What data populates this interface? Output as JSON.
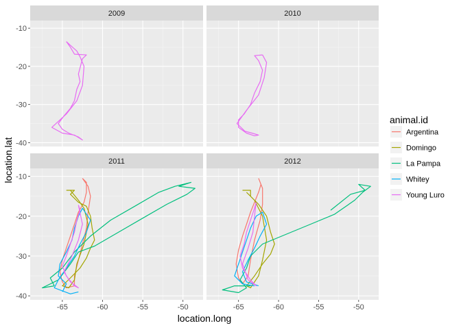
{
  "chart_data": {
    "type": "line",
    "xlabel": "location.long",
    "ylabel": "location.lat",
    "xlim": [
      -69,
      -47.5
    ],
    "ylim": [
      -41,
      -8
    ],
    "x_ticks": [
      -65,
      -60,
      -55,
      -50
    ],
    "y_ticks": [
      -10,
      -20,
      -30,
      -40
    ],
    "x_tick_labels": [
      "-65",
      "-60",
      "-55",
      "-50"
    ],
    "y_tick_labels": [
      "-10",
      "-20",
      "-30",
      "-40"
    ],
    "grid": true,
    "legend": {
      "title": "animal.id",
      "position": "right",
      "entries": [
        "Argentina",
        "Domingo",
        "La Pampa",
        "Whitey",
        "Young Luro"
      ]
    },
    "colors": {
      "Argentina": "#F8766D",
      "Domingo": "#A3A500",
      "La Pampa": "#00BF7D",
      "Whitey": "#00B0F6",
      "Young Luro": "#E76BF3"
    },
    "facets": [
      {
        "label": "2009",
        "series": [
          {
            "name": "Young Luro",
            "points": [
              [
                -64.5,
                -13.5
              ],
              [
                -64,
                -15
              ],
              [
                -63.5,
                -16.8
              ],
              [
                -62,
                -17
              ],
              [
                -62.5,
                -18
              ],
              [
                -63,
                -22
              ],
              [
                -62.8,
                -24
              ],
              [
                -63.2,
                -26
              ],
              [
                -63.5,
                -29
              ],
              [
                -64,
                -31
              ],
              [
                -64.8,
                -33
              ],
              [
                -65.5,
                -35
              ],
              [
                -65,
                -36.5
              ],
              [
                -64.2,
                -37.5
              ],
              [
                -63,
                -38.5
              ],
              [
                -62.5,
                -39.3
              ],
              [
                -63.5,
                -38
              ],
              [
                -65,
                -37.5
              ],
              [
                -66.3,
                -36
              ],
              [
                -64.5,
                -32.5
              ],
              [
                -63.2,
                -29
              ],
              [
                -62.5,
                -25
              ],
              [
                -62.3,
                -20
              ],
              [
                -62.8,
                -17.5
              ],
              [
                -63.2,
                -16
              ],
              [
                -64,
                -14.5
              ],
              [
                -64.5,
                -13.5
              ]
            ]
          }
        ]
      },
      {
        "label": "2010",
        "series": [
          {
            "name": "Young Luro",
            "points": [
              [
                -62,
                -17
              ],
              [
                -63,
                -17.2
              ],
              [
                -62.5,
                -18.5
              ],
              [
                -62,
                -21
              ],
              [
                -62.3,
                -24
              ],
              [
                -63,
                -27
              ],
              [
                -63.5,
                -30
              ],
              [
                -64.3,
                -32.5
              ],
              [
                -65,
                -34
              ],
              [
                -65,
                -36
              ],
              [
                -64,
                -37.5
              ],
              [
                -63,
                -38.2
              ],
              [
                -62.5,
                -38
              ],
              [
                -63.3,
                -37.5
              ],
              [
                -64.2,
                -37
              ],
              [
                -65.2,
                -35
              ],
              [
                -64,
                -31.5
              ],
              [
                -62.5,
                -27.5
              ],
              [
                -61.8,
                -23
              ],
              [
                -61.5,
                -19
              ],
              [
                -62,
                -17
              ]
            ]
          }
        ]
      },
      {
        "label": "2011",
        "series": [
          {
            "name": "Argentina",
            "points": [
              [
                -62.5,
                -10.5
              ],
              [
                -62,
                -11.5
              ],
              [
                -62,
                -14
              ],
              [
                -62.3,
                -16.5
              ],
              [
                -63,
                -19
              ],
              [
                -63.5,
                -22
              ],
              [
                -64,
                -25
              ],
              [
                -64.5,
                -28
              ],
              [
                -65,
                -31
              ],
              [
                -65.3,
                -34
              ],
              [
                -65,
                -36.5
              ],
              [
                -64.5,
                -38
              ],
              [
                -63.5,
                -37.5
              ],
              [
                -63.5,
                -35
              ],
              [
                -63,
                -31
              ],
              [
                -62.5,
                -27
              ],
              [
                -62,
                -23
              ],
              [
                -61.8,
                -19
              ],
              [
                -61.5,
                -15
              ],
              [
                -61.8,
                -12.5
              ],
              [
                -62.5,
                -10.5
              ]
            ]
          },
          {
            "name": "Domingo",
            "points": [
              [
                -64.5,
                -13.5
              ],
              [
                -63.5,
                -13.5
              ],
              [
                -64,
                -14.5
              ],
              [
                -63,
                -16.5
              ],
              [
                -62,
                -17.5
              ],
              [
                -61.5,
                -20
              ],
              [
                -61.3,
                -23
              ],
              [
                -61,
                -26
              ],
              [
                -61.5,
                -28
              ],
              [
                -62,
                -30.5
              ],
              [
                -62.8,
                -33
              ],
              [
                -64,
                -35.5
              ],
              [
                -65,
                -37.5
              ],
              [
                -64.2,
                -38
              ],
              [
                -63.5,
                -36
              ],
              [
                -63.2,
                -32
              ],
              [
                -62.3,
                -27
              ],
              [
                -61.8,
                -22
              ],
              [
                -62.3,
                -18
              ],
              [
                -63,
                -16
              ],
              [
                -64,
                -13.5
              ]
            ]
          },
          {
            "name": "La Pampa",
            "points": [
              [
                -66,
                -37.5
              ],
              [
                -67.5,
                -38
              ],
              [
                -65.5,
                -36
              ],
              [
                -64,
                -32
              ],
              [
                -63,
                -29
              ],
              [
                -61,
                -27.5
              ],
              [
                -58,
                -24
              ],
              [
                -55,
                -20.5
              ],
              [
                -52,
                -17
              ],
              [
                -49.5,
                -14.5
              ],
              [
                -48.5,
                -13
              ],
              [
                -50.5,
                -12.5
              ],
              [
                -49,
                -11.5
              ],
              [
                -51,
                -12.5
              ],
              [
                -53,
                -14
              ],
              [
                -56,
                -17.5
              ],
              [
                -59,
                -21
              ],
              [
                -61.5,
                -25
              ],
              [
                -63.5,
                -29
              ],
              [
                -65,
                -33
              ],
              [
                -66.5,
                -35.5
              ],
              [
                -66,
                -37.5
              ]
            ]
          },
          {
            "name": "Whitey",
            "points": [
              [
                -65,
                -39
              ],
              [
                -64.5,
                -37
              ],
              [
                -65.5,
                -35
              ],
              [
                -65.3,
                -32
              ],
              [
                -64.5,
                -29
              ],
              [
                -63.8,
                -26
              ],
              [
                -63.5,
                -23
              ],
              [
                -63,
                -20
              ],
              [
                -62.5,
                -18
              ],
              [
                -61.5,
                -21
              ],
              [
                -62,
                -24
              ],
              [
                -62.8,
                -27
              ],
              [
                -63.5,
                -30
              ],
              [
                -64.5,
                -33
              ],
              [
                -65.5,
                -36
              ],
              [
                -66,
                -38
              ],
              [
                -64,
                -39.5
              ],
              [
                -63,
                -39
              ]
            ]
          },
          {
            "name": "Young Luro",
            "points": [
              [
                -63,
                -17.2
              ],
              [
                -62.8,
                -18.5
              ],
              [
                -63.2,
                -21
              ],
              [
                -63.5,
                -24
              ],
              [
                -64,
                -27
              ],
              [
                -64.5,
                -30
              ],
              [
                -65,
                -32.5
              ],
              [
                -64.5,
                -35
              ],
              [
                -63.5,
                -37.5
              ],
              [
                -63,
                -38
              ],
              [
                -64,
                -36.5
              ],
              [
                -64.8,
                -34
              ],
              [
                -63.8,
                -30
              ],
              [
                -63,
                -26
              ],
              [
                -62.5,
                -22
              ],
              [
                -63,
                -17.2
              ]
            ]
          }
        ]
      },
      {
        "label": "2012",
        "series": [
          {
            "name": "Argentina",
            "points": [
              [
                -62.5,
                -10.5
              ],
              [
                -62.2,
                -12
              ],
              [
                -62.5,
                -14
              ],
              [
                -63,
                -16.5
              ],
              [
                -63.5,
                -19
              ],
              [
                -64,
                -22
              ],
              [
                -64.5,
                -25
              ],
              [
                -65,
                -28.5
              ],
              [
                -65.3,
                -32
              ],
              [
                -65,
                -35.5
              ],
              [
                -64.5,
                -37
              ],
              [
                -63.8,
                -35
              ],
              [
                -63.5,
                -31
              ],
              [
                -63,
                -26
              ],
              [
                -62.3,
                -21
              ],
              [
                -62,
                -17
              ],
              [
                -62,
                -13
              ],
              [
                -62.5,
                -10.5
              ]
            ]
          },
          {
            "name": "Domingo",
            "points": [
              [
                -64.5,
                -13.5
              ],
              [
                -63.5,
                -13.5
              ],
              [
                -63.5,
                -15
              ],
              [
                -62.5,
                -17
              ],
              [
                -61.5,
                -20
              ],
              [
                -61,
                -24
              ],
              [
                -60.5,
                -27
              ],
              [
                -61,
                -29.5
              ],
              [
                -62,
                -32
              ],
              [
                -63,
                -35
              ],
              [
                -64,
                -37.5
              ],
              [
                -63.5,
                -38
              ],
              [
                -62.5,
                -35
              ],
              [
                -62,
                -31
              ],
              [
                -61.5,
                -26
              ],
              [
                -62,
                -20
              ],
              [
                -63,
                -16
              ],
              [
                -64,
                -14
              ]
            ]
          },
          {
            "name": "La Pampa",
            "points": [
              [
                -63.5,
                -37.5
              ],
              [
                -65.5,
                -37.5
              ],
              [
                -67,
                -38.5
              ],
              [
                -65,
                -39.2
              ],
              [
                -64,
                -38
              ],
              [
                -64.8,
                -36
              ],
              [
                -64,
                -33
              ],
              [
                -63.5,
                -30
              ],
              [
                -62,
                -27
              ],
              [
                -59,
                -24.5
              ],
              [
                -56,
                -22
              ],
              [
                -53,
                -19.5
              ],
              [
                -50.5,
                -16
              ],
              [
                -49.5,
                -14
              ],
              [
                -48.5,
                -12.5
              ],
              [
                -50,
                -12
              ],
              [
                -49.2,
                -13.5
              ],
              [
                -51,
                -14.5
              ],
              [
                -53.5,
                -18.5
              ]
            ]
          },
          {
            "name": "Whitey",
            "points": [
              [
                -63,
                -37.5
              ],
              [
                -64.5,
                -37
              ],
              [
                -65.5,
                -35
              ],
              [
                -65,
                -32
              ],
              [
                -64.5,
                -29
              ],
              [
                -64,
                -26
              ],
              [
                -63.5,
                -23
              ],
              [
                -62.8,
                -20
              ],
              [
                -62,
                -19
              ],
              [
                -61.5,
                -22
              ],
              [
                -62.3,
                -25
              ],
              [
                -63,
                -28
              ],
              [
                -63.8,
                -31
              ],
              [
                -64.5,
                -34
              ],
              [
                -64,
                -36.5
              ],
              [
                -62.5,
                -37.5
              ]
            ]
          },
          {
            "name": "Young Luro",
            "points": [
              [
                -62.8,
                -16.5
              ],
              [
                -63,
                -18
              ],
              [
                -63.5,
                -21
              ],
              [
                -64,
                -24
              ],
              [
                -64.3,
                -27
              ],
              [
                -64.8,
                -30
              ],
              [
                -64.5,
                -33
              ],
              [
                -63.5,
                -36
              ],
              [
                -62.8,
                -37.5
              ],
              [
                -63.8,
                -36
              ],
              [
                -64.5,
                -32
              ],
              [
                -63.8,
                -28
              ],
              [
                -63.2,
                -24
              ],
              [
                -63,
                -20
              ],
              [
                -62.8,
                -16.5
              ]
            ]
          }
        ]
      }
    ]
  }
}
